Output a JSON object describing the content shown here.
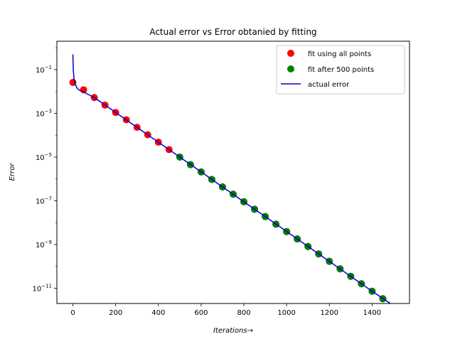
{
  "chart_data": {
    "type": "scatter",
    "title": "Actual error vs Error obtanied by fitting",
    "xlabel": "Iterations",
    "xlabel_arrow": "→",
    "ylabel": "Error",
    "xlim": [
      -75,
      1575
    ],
    "ylim": [
      2e-12,
      2.0
    ],
    "yscale": "log",
    "x_ticks": [
      0,
      200,
      400,
      600,
      800,
      1000,
      1200,
      1400
    ],
    "x_tick_labels": [
      "0",
      "200",
      "400",
      "600",
      "800",
      "1000",
      "1200",
      "1400"
    ],
    "y_ticks": [
      {
        "value": 0.1,
        "base": "10",
        "exp": "−1"
      },
      {
        "value": 0.001,
        "base": "10",
        "exp": "−3"
      },
      {
        "value": 1e-05,
        "base": "10",
        "exp": "−5"
      },
      {
        "value": 1e-07,
        "base": "10",
        "exp": "−7"
      },
      {
        "value": 1e-09,
        "base": "10",
        "exp": "−9"
      },
      {
        "value": 1e-11,
        "base": "10",
        "exp": "−11"
      }
    ],
    "grid": false,
    "legend_position": "top-right",
    "series": [
      {
        "name": "fit using all points",
        "kind": "scatter",
        "color": "#ff0000",
        "x": [
          0,
          50,
          100,
          150,
          200,
          250,
          300,
          350,
          400,
          450,
          500,
          550,
          600,
          650,
          700,
          750,
          800,
          850,
          900,
          950,
          1000,
          1050,
          1100,
          1150,
          1200,
          1250,
          1300,
          1350,
          1400,
          1450
        ],
        "y": [
          0.026,
          0.012,
          0.0053,
          0.0024,
          0.0011,
          0.00051,
          0.00023,
          0.000105,
          4.8e-05,
          2.2e-05,
          1e-05,
          4.5e-06,
          2.1e-06,
          9.5e-07,
          4.3e-07,
          2e-07,
          9e-08,
          4.1e-08,
          1.9e-08,
          8.5e-09,
          3.9e-09,
          1.8e-09,
          8.1e-10,
          3.7e-10,
          1.7e-10,
          7.7e-11,
          3.5e-11,
          1.6e-11,
          7.3e-12,
          3.3e-12
        ]
      },
      {
        "name": "fit after 500 points",
        "kind": "scatter",
        "color": "#008000",
        "x": [
          500,
          550,
          600,
          650,
          700,
          750,
          800,
          850,
          900,
          950,
          1000,
          1050,
          1100,
          1150,
          1200,
          1250,
          1300,
          1350,
          1400,
          1450
        ],
        "y": [
          1e-05,
          4.5e-06,
          2.1e-06,
          9.5e-07,
          4.3e-07,
          2e-07,
          9e-08,
          4.1e-08,
          1.9e-08,
          8.5e-09,
          3.9e-09,
          1.8e-09,
          8.1e-10,
          3.7e-10,
          1.7e-10,
          7.7e-11,
          3.5e-11,
          1.6e-11,
          7.3e-12,
          3.3e-12
        ]
      },
      {
        "name": "actual error",
        "kind": "line",
        "color": "#0000cc",
        "x": [
          0,
          2,
          5,
          10,
          20,
          30,
          50,
          100,
          200,
          300,
          400,
          500,
          600,
          700,
          800,
          900,
          1000,
          1100,
          1200,
          1300,
          1400,
          1500
        ],
        "y": [
          0.5,
          0.1,
          0.04,
          0.022,
          0.014,
          0.0115,
          0.0095,
          0.0053,
          0.0011,
          0.00023,
          4.8e-05,
          1e-05,
          2.1e-06,
          4.3e-07,
          9e-08,
          1.9e-08,
          3.9e-09,
          8.1e-10,
          1.7e-10,
          3.5e-11,
          7.3e-12,
          1.6e-12
        ]
      }
    ]
  }
}
